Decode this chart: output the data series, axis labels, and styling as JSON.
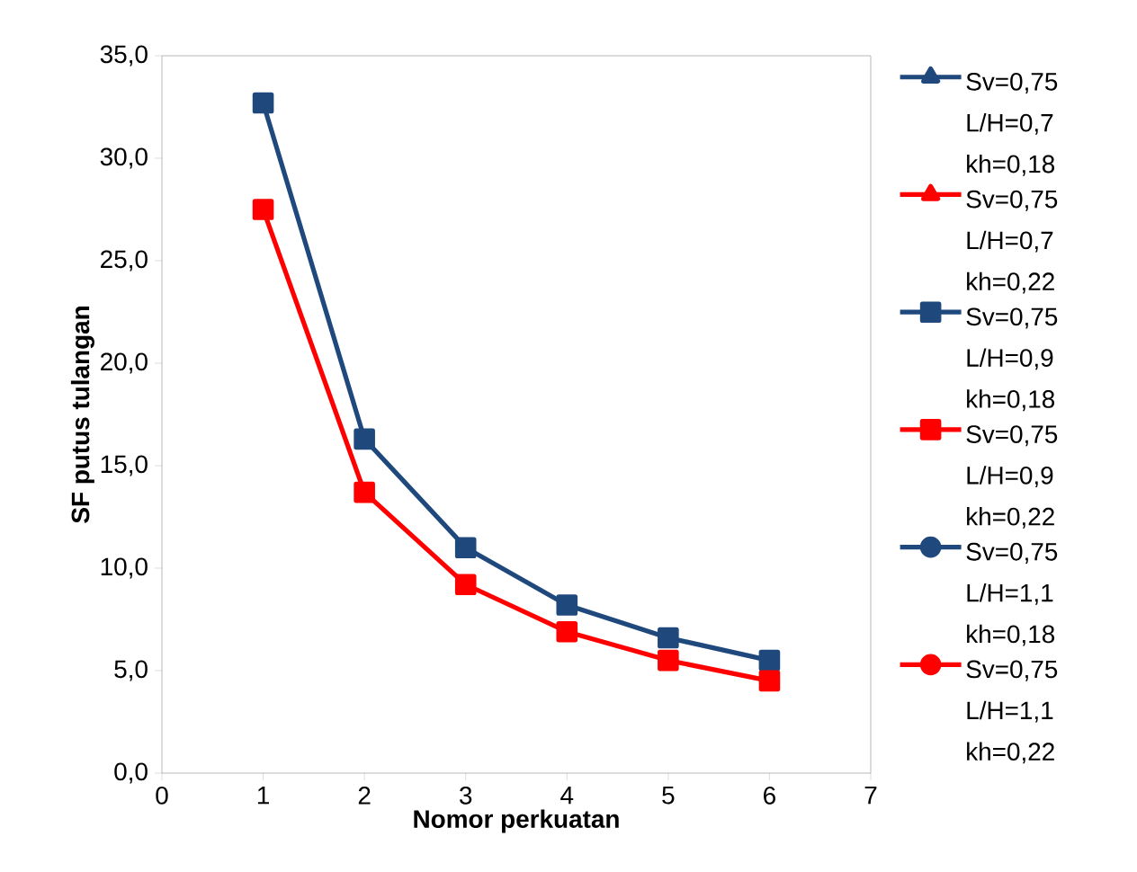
{
  "chart_data": {
    "type": "line",
    "xlabel": "Nomor perkuatan",
    "ylabel": "SF putus tulangan",
    "x": [
      1,
      2,
      3,
      4,
      5,
      6
    ],
    "xlim": [
      0,
      7
    ],
    "xticks": [
      0,
      1,
      2,
      3,
      4,
      5,
      6,
      7
    ],
    "ylim": [
      0,
      35
    ],
    "yticks": [
      {
        "value": 0,
        "label": "0,0"
      },
      {
        "value": 5,
        "label": "5,0"
      },
      {
        "value": 10,
        "label": "10,0"
      },
      {
        "value": 15,
        "label": "15,0"
      },
      {
        "value": 20,
        "label": "20,0"
      },
      {
        "value": 25,
        "label": "25,0"
      },
      {
        "value": 30,
        "label": "30,0"
      },
      {
        "value": 35,
        "label": "35,0"
      }
    ],
    "grid": false,
    "legend": "right",
    "line_style": "solid",
    "series": [
      {
        "name": "Sv=0,75 L/H=0,7 kh=0,18",
        "color": "#1f497d",
        "marker": "triangle",
        "values": [
          null,
          null,
          null,
          null,
          null,
          null
        ]
      },
      {
        "name": "Sv=0,75 L/H=0,7 kh=0,22",
        "color": "#ff0000",
        "marker": "triangle",
        "values": [
          null,
          null,
          null,
          null,
          null,
          null
        ]
      },
      {
        "name": "Sv=0,75 L/H=0,9 kh=0,18",
        "color": "#1f497d",
        "marker": "square",
        "values": [
          32.7,
          16.3,
          11.0,
          8.2,
          6.6,
          5.5
        ]
      },
      {
        "name": "Sv=0,75 L/H=0,9 kh=0,22",
        "color": "#ff0000",
        "marker": "square",
        "values": [
          27.5,
          13.7,
          9.2,
          6.9,
          5.5,
          4.5
        ]
      },
      {
        "name": "Sv=0,75 L/H=1,1 kh=0,18",
        "color": "#1f497d",
        "marker": "circle",
        "values": [
          null,
          null,
          null,
          null,
          null,
          null
        ]
      },
      {
        "name": "Sv=0,75 L/H=1,1 kh=0,22",
        "color": "#ff0000",
        "marker": "circle",
        "values": [
          null,
          null,
          null,
          null,
          null,
          null
        ]
      }
    ]
  }
}
